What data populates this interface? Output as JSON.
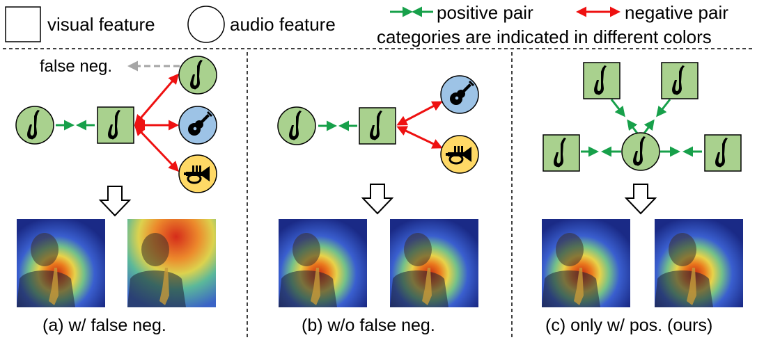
{
  "legend": {
    "visual_label": "visual feature",
    "audio_label": "audio feature",
    "positive_label": "positive pair",
    "negative_label": "negative pair",
    "colors_note": "categories are indicated in different colors"
  },
  "panels": [
    {
      "caption": "(a) w/ false neg.",
      "false_neg_label": "false neg."
    },
    {
      "caption": "(b) w/o false neg."
    },
    {
      "caption": "(c) only w/ pos. (ours)"
    }
  ],
  "colors": {
    "green_node": "#a9d18e",
    "blue_node": "#9dc3e6",
    "yellow_node": "#ffd966",
    "positive_arrow": "#17a04a",
    "negative_arrow": "#ee1111",
    "false_neg_arrow": "#a6a6a6"
  },
  "icons": {
    "saxophone": "saxophone-icon",
    "guitar": "guitar-icon",
    "trumpet": "trumpet-icon"
  }
}
